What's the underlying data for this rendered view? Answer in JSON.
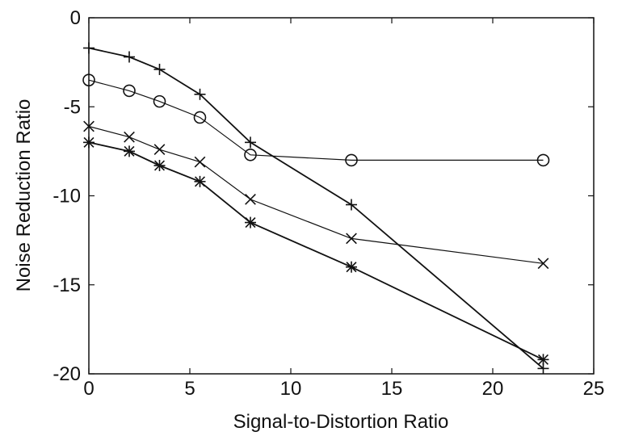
{
  "chart_data": {
    "type": "line",
    "title": "",
    "xlabel": "Signal-to-Distortion Ratio",
    "ylabel": "Noise Reduction Ratio",
    "xlim": [
      0,
      25
    ],
    "ylim": [
      -20,
      0
    ],
    "x_ticks": [
      0,
      5,
      10,
      15,
      20,
      25
    ],
    "y_ticks": [
      0,
      -5,
      -10,
      -15,
      -20
    ],
    "x_tick_labels": [
      "0",
      "5",
      "10",
      "15",
      "20",
      "25"
    ],
    "y_tick_labels": [
      "0",
      "-5",
      "-10",
      "-15",
      "-20"
    ],
    "grid": false,
    "legend": "none",
    "series": [
      {
        "marker": "plus",
        "x": [
          0,
          2,
          3.5,
          5.5,
          8,
          13,
          22.5
        ],
        "y": [
          -1.7,
          -2.2,
          -2.9,
          -4.3,
          -7.0,
          -10.5,
          -19.7
        ]
      },
      {
        "marker": "circle",
        "x": [
          0,
          2,
          3.5,
          5.5,
          8,
          13,
          22.5
        ],
        "y": [
          -3.5,
          -4.1,
          -4.7,
          -5.6,
          -7.7,
          -8.0,
          -8.0
        ]
      },
      {
        "marker": "x",
        "x": [
          0,
          2,
          3.5,
          5.5,
          8,
          13,
          22.5
        ],
        "y": [
          -6.1,
          -6.7,
          -7.4,
          -8.1,
          -10.2,
          -12.4,
          -13.8
        ]
      },
      {
        "marker": "star",
        "x": [
          0,
          2,
          3.5,
          5.5,
          8,
          13,
          22.5
        ],
        "y": [
          -7.0,
          -7.5,
          -8.3,
          -9.2,
          -11.5,
          -14.0,
          -19.2
        ]
      }
    ]
  }
}
